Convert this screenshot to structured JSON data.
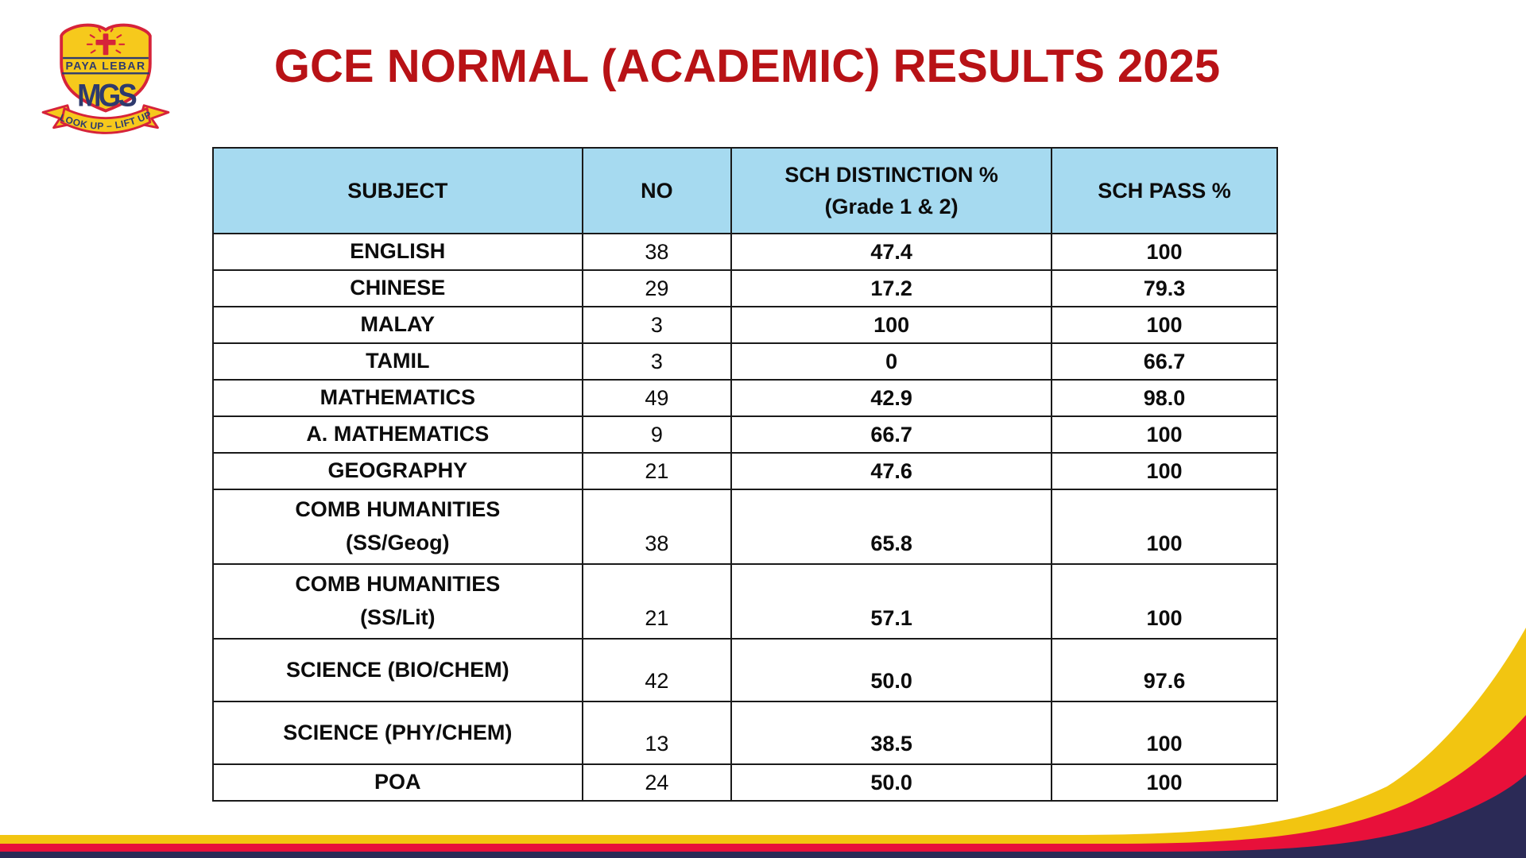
{
  "slide": {
    "title": "GCE NORMAL (ACADEMIC) RESULTS 2025"
  },
  "logo": {
    "school_name_band": "PAYA LEBAR",
    "monogram": "MGS",
    "motto": "LOOK UP – LIFT UP"
  },
  "table": {
    "headers": [
      "SUBJECT",
      "NO",
      "SCH DISTINCTION %\n(Grade 1 & 2)",
      "SCH PASS %"
    ],
    "rows": [
      {
        "subject": "ENGLISH",
        "no": "38",
        "distinction": "47.4",
        "pass": "100",
        "size": "normal"
      },
      {
        "subject": "CHINESE",
        "no": "29",
        "distinction": "17.2",
        "pass": "79.3",
        "size": "normal"
      },
      {
        "subject": "MALAY",
        "no": "3",
        "distinction": "100",
        "pass": "100",
        "size": "normal"
      },
      {
        "subject": "TAMIL",
        "no": "3",
        "distinction": "0",
        "pass": "66.7",
        "size": "normal"
      },
      {
        "subject": "MATHEMATICS",
        "no": "49",
        "distinction": "42.9",
        "pass": "98.0",
        "size": "normal"
      },
      {
        "subject": "A. MATHEMATICS",
        "no": "9",
        "distinction": "66.7",
        "pass": "100",
        "size": "normal"
      },
      {
        "subject": "GEOGRAPHY",
        "no": "21",
        "distinction": "47.6",
        "pass": "100",
        "size": "normal"
      },
      {
        "subject": "COMB HUMANITIES\n(SS/Geog)",
        "no": "38",
        "distinction": "65.8",
        "pass": "100",
        "size": "comb"
      },
      {
        "subject": "COMB HUMANITIES\n(SS/Lit)",
        "no": "21",
        "distinction": "57.1",
        "pass": "100",
        "size": "comb"
      },
      {
        "subject": "SCIENCE (BIO/CHEM)",
        "no": "42",
        "distinction": "50.0",
        "pass": "97.6",
        "size": "sci"
      },
      {
        "subject": "SCIENCE (PHY/CHEM)",
        "no": "13",
        "distinction": "38.5",
        "pass": "100",
        "size": "sci"
      },
      {
        "subject": "POA",
        "no": "24",
        "distinction": "50.0",
        "pass": "100",
        "size": "normal"
      }
    ]
  },
  "colors": {
    "title_red": "#B81216",
    "header_blue": "#A6DAF0",
    "pass_blue": "#2222CC",
    "grid_black": "#1a1a1a",
    "stripe_yellow": "#F2C511",
    "stripe_red": "#E8103A",
    "stripe_navy": "#2B2A56",
    "logo_gold": "#F6C91C",
    "logo_red": "#D6233A",
    "logo_navy": "#2E3A6E"
  }
}
